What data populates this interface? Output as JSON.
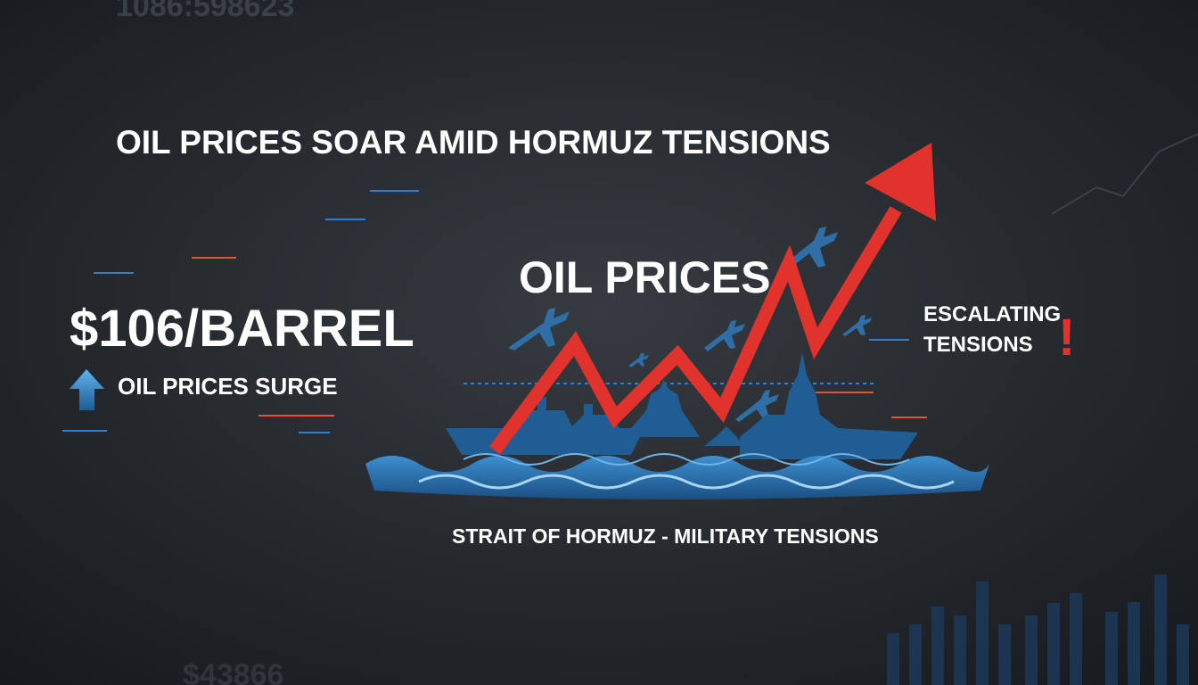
{
  "header": {
    "title": "OIL PRICES SOAR AMID HORMUZ TENSIONS"
  },
  "background_numbers": [
    "1086:598623",
    "$43866"
  ],
  "price": {
    "value": "$106/BARREL",
    "caption": "OIL PRICES SURGE"
  },
  "graphic": {
    "label": "OIL PRICES",
    "alert": {
      "lines": [
        "ESCALATING",
        "TENSIONS"
      ],
      "mark": "!"
    },
    "caption": "STRAIT OF HORMUZ - MILITARY TENSIONS"
  }
}
